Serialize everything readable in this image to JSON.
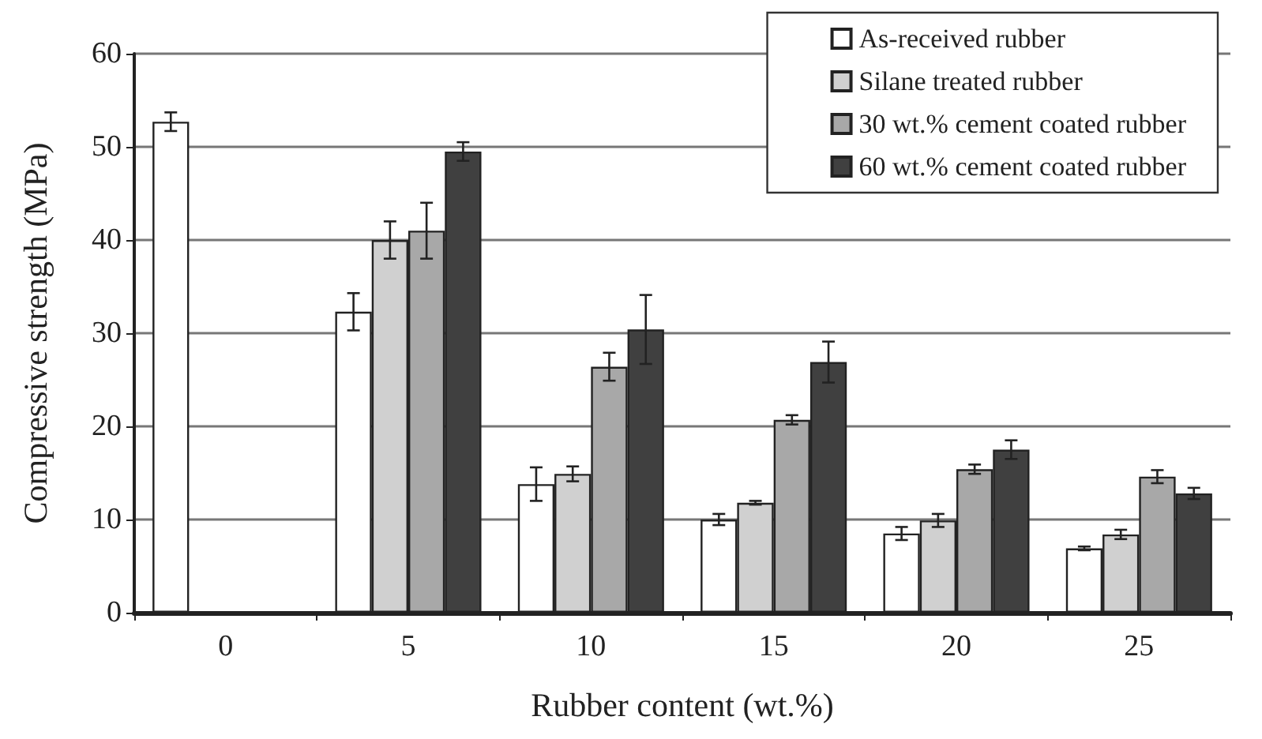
{
  "chart_data": {
    "type": "bar",
    "xlabel": "Rubber content (wt.%)",
    "ylabel": "Compressive strength (MPa)",
    "categories": [
      "0",
      "5",
      "10",
      "15",
      "20",
      "25"
    ],
    "series": [
      {
        "name": "As-received rubber",
        "color": "#ffffff",
        "values": [
          52.7,
          32.3,
          13.8,
          10.0,
          8.5,
          6.9
        ],
        "errors": [
          1.0,
          2.0,
          1.8,
          0.6,
          0.7,
          0.2
        ]
      },
      {
        "name": "Silane treated rubber",
        "color": "#d0d0d0",
        "values": [
          null,
          40.0,
          14.9,
          11.8,
          9.9,
          8.4
        ],
        "errors": [
          null,
          2.0,
          0.8,
          0.2,
          0.7,
          0.5
        ]
      },
      {
        "name": "30 wt.% cement coated rubber",
        "color": "#a8a8a8",
        "values": [
          null,
          41.0,
          26.4,
          20.7,
          15.4,
          14.6
        ],
        "errors": [
          null,
          3.0,
          1.5,
          0.5,
          0.5,
          0.7
        ]
      },
      {
        "name": "60 wt.% cement coated rubber",
        "color": "#404040",
        "values": [
          null,
          49.5,
          30.4,
          26.9,
          17.5,
          12.8
        ],
        "errors": [
          null,
          1.0,
          3.7,
          2.2,
          1.0,
          0.6
        ]
      }
    ],
    "ylim": [
      0,
      60
    ],
    "yticks": [
      0,
      10,
      20,
      30,
      40,
      50,
      60
    ],
    "grid": "y",
    "legend": "top right"
  }
}
